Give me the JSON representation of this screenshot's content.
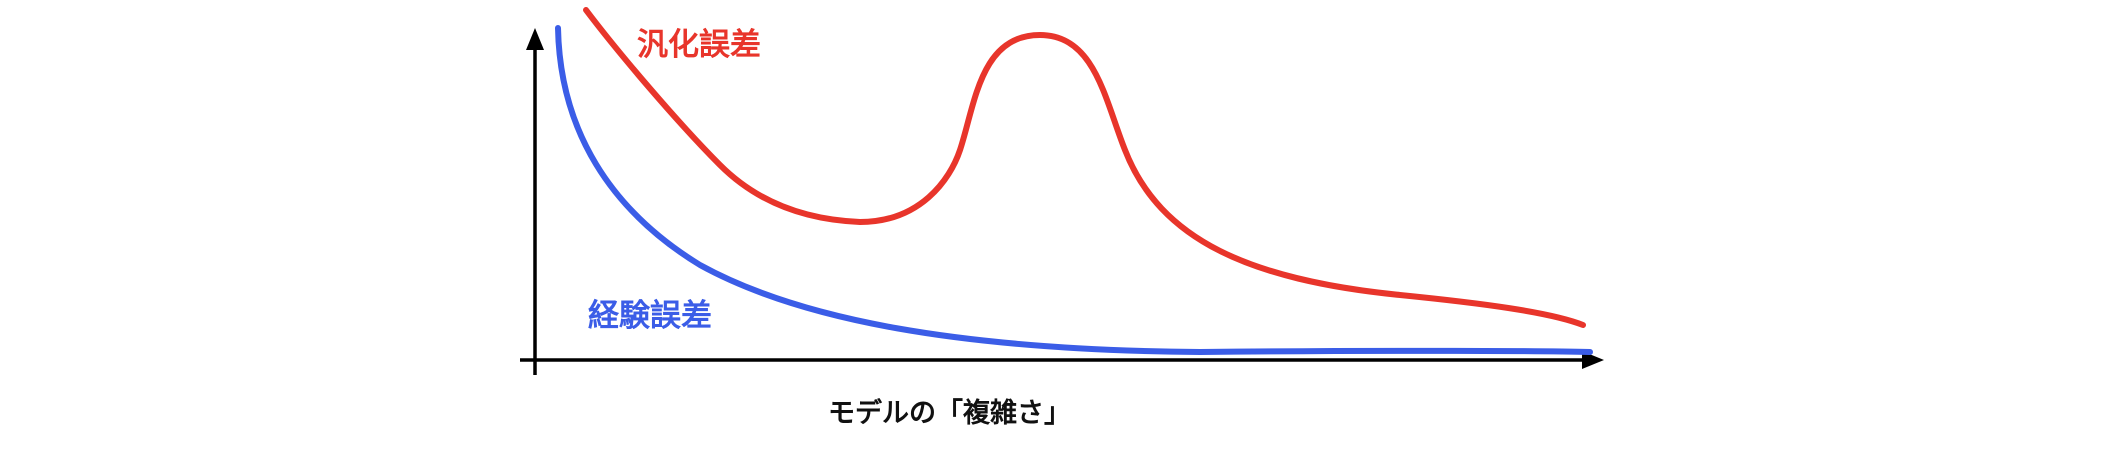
{
  "chart_data": {
    "type": "line",
    "xlabel": "モデルの「複雑さ」",
    "ylabel": "",
    "grid": false,
    "series": [
      {
        "name": "汎化誤差",
        "color": "#e8352b",
        "description": "decreases, rises to a peak, then decreases again"
      },
      {
        "name": "経験誤差",
        "color": "#3b5de7",
        "description": "decreases monotonically and flattens out"
      }
    ]
  },
  "colors": {
    "generalization": "#e8352b",
    "empirical": "#3b5de7",
    "axis": "#000000"
  }
}
